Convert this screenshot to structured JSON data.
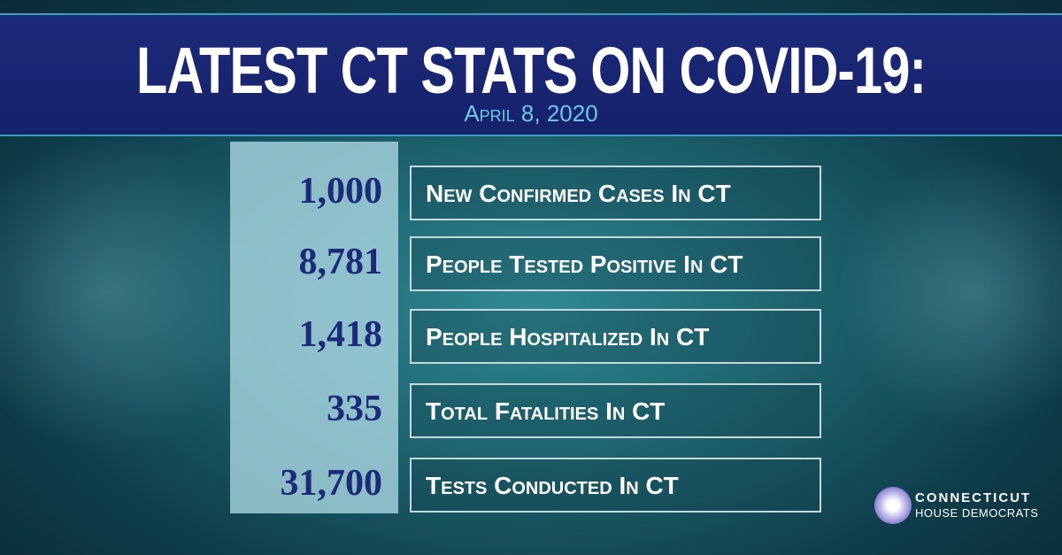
{
  "header": {
    "title": "LATEST CT STATS ON COVID-19:",
    "date": "April 8, 2020"
  },
  "stats": [
    {
      "value": "1,000",
      "label": "New Confirmed Cases In CT"
    },
    {
      "value": "8,781",
      "label": "People Tested Positive In CT"
    },
    {
      "value": "1,418",
      "label": "People Hospitalized In CT"
    },
    {
      "value": "335",
      "label": "Total Fatalities In CT"
    },
    {
      "value": "31,700",
      "label": "Tests Conducted In CT"
    }
  ],
  "logo": {
    "line1": "CONNECTICUT",
    "line2": "HOUSE DEMOCRATS"
  }
}
